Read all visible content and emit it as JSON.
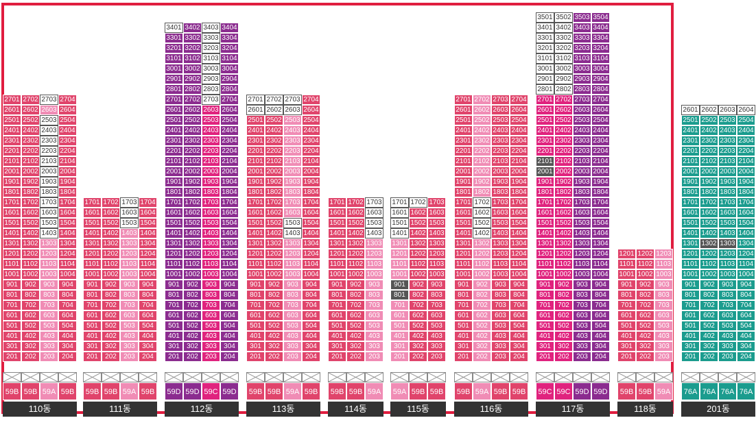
{
  "colors": {
    "59A": "#f08cb5",
    "59B": "#e0446b",
    "59C": "#e0237e",
    "59D": "#8b2c8f",
    "76A": "#1b9c8e",
    "frame": "#e01d3f",
    "label_bg": "#333333",
    "gray": "#555555"
  },
  "buildings": [
    {
      "name": "110동",
      "types": [
        "59B",
        "59B",
        "59A",
        "59B"
      ],
      "top": 27,
      "white": [
        [
          27,
          3
        ],
        [
          25,
          3
        ],
        [
          24,
          3
        ],
        [
          23,
          3
        ],
        [
          22,
          3
        ],
        [
          21,
          3
        ],
        [
          20,
          3
        ],
        [
          19,
          3
        ],
        [
          18,
          3
        ],
        [
          17,
          3
        ],
        [
          16,
          3
        ],
        [
          15,
          3
        ],
        [
          14,
          3
        ]
      ],
      "gray": []
    },
    {
      "name": "111동",
      "types": [
        "59B",
        "59B",
        "59A",
        "59B"
      ],
      "top": 17,
      "white": [
        [
          17,
          3
        ],
        [
          16,
          3
        ],
        [
          15,
          3
        ]
      ],
      "gray": []
    },
    {
      "name": "112동",
      "types": [
        "59D",
        "59D",
        "59C",
        "59D"
      ],
      "top": 34,
      "white": [
        [
          34,
          1
        ],
        [
          34,
          3
        ],
        [
          33,
          3
        ],
        [
          32,
          3
        ],
        [
          31,
          3
        ],
        [
          30,
          3
        ],
        [
          29,
          3
        ],
        [
          28,
          3
        ],
        [
          27,
          3
        ]
      ],
      "gray": []
    },
    {
      "name": "113동",
      "types": [
        "59B",
        "59B",
        "59A",
        "59B"
      ],
      "top": 27,
      "white": [
        [
          27,
          1
        ],
        [
          27,
          2
        ],
        [
          27,
          3
        ],
        [
          26,
          1
        ],
        [
          26,
          2
        ],
        [
          26,
          3
        ],
        [
          15,
          3
        ],
        [
          14,
          3
        ]
      ],
      "gray": []
    },
    {
      "name": "114동",
      "types": [
        "59B",
        "59B",
        "59A"
      ],
      "top": 17,
      "white": [
        [
          17,
          3
        ],
        [
          16,
          3
        ],
        [
          15,
          3
        ],
        [
          14,
          3
        ]
      ],
      "gray": []
    },
    {
      "name": "115동",
      "types": [
        "59A",
        "59B",
        "59B"
      ],
      "top": 17,
      "white": [
        [
          17,
          1
        ],
        [
          17,
          2
        ],
        [
          16,
          1
        ],
        [
          15,
          1
        ],
        [
          14,
          1
        ]
      ],
      "gray": [
        [
          9,
          1
        ],
        [
          8,
          1
        ]
      ]
    },
    {
      "name": "116동",
      "types": [
        "59B",
        "59A",
        "59B",
        "59B"
      ],
      "top": 27,
      "white": [
        [
          17,
          2
        ],
        [
          16,
          2
        ],
        [
          15,
          2
        ],
        [
          14,
          2
        ]
      ],
      "gray": []
    },
    {
      "name": "117동",
      "types": [
        "59C",
        "59C",
        "59D",
        "59D"
      ],
      "top": 35,
      "white": [
        [
          35,
          1
        ],
        [
          35,
          2
        ],
        [
          34,
          1
        ],
        [
          34,
          2
        ],
        [
          33,
          1
        ],
        [
          33,
          2
        ],
        [
          32,
          1
        ],
        [
          32,
          2
        ],
        [
          31,
          1
        ],
        [
          31,
          2
        ],
        [
          30,
          1
        ],
        [
          30,
          2
        ],
        [
          29,
          1
        ],
        [
          29,
          2
        ],
        [
          28,
          1
        ],
        [
          28,
          2
        ]
      ],
      "gray": [
        [
          21,
          1
        ],
        [
          20,
          1
        ]
      ]
    },
    {
      "name": "118동",
      "types": [
        "59B",
        "59B",
        "59A"
      ],
      "top": 12,
      "white": [],
      "gray": []
    },
    {
      "name": "201동",
      "types": [
        "76A",
        "76A",
        "76A",
        "76A"
      ],
      "top": 26,
      "white": [
        [
          26,
          1
        ],
        [
          26,
          2
        ],
        [
          26,
          3
        ],
        [
          26,
          4
        ]
      ],
      "gray": [
        [
          13,
          2
        ],
        [
          13,
          3
        ]
      ]
    }
  ]
}
